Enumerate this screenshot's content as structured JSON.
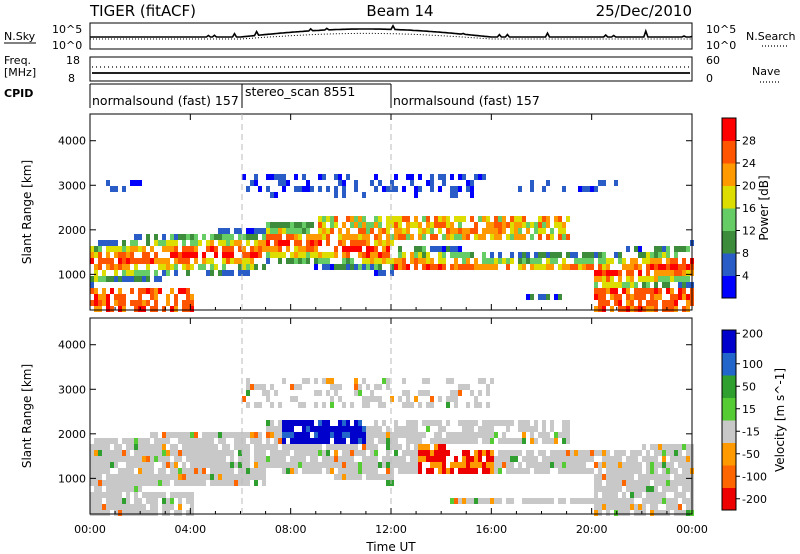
{
  "header": {
    "title_left": "TIGER (fitACF)",
    "title_center": "Beam 14",
    "title_right": "25/Dec/2010"
  },
  "top_panels": {
    "nsky_label": "N.Sky",
    "nsky_tick_top": "10^5",
    "nsky_tick_bottom": "10^0",
    "nsky_right_top": "10^5",
    "nsky_right_bottom": "10^0",
    "nsearch_label": "N.Search",
    "freq_label_1": "Freq.",
    "freq_label_2": "[MHz]",
    "freq_tick_top": "18",
    "freq_tick_bottom": "8",
    "nave_tick_top": "60",
    "nave_tick_bottom": "0",
    "nave_label": "Nave",
    "cpid_label": "CPID"
  },
  "cpid_segments": [
    {
      "label": "normalsound (fast) 157"
    },
    {
      "label": "stereo_scan 8551"
    },
    {
      "label": "normalsound (fast) 157"
    }
  ],
  "colors": {
    "power": [
      "#0000ff",
      "#2a5cc7",
      "#3c8c3c",
      "#66cc66",
      "#dddd00",
      "#ff9900",
      "#ff5500",
      "#ff0000"
    ],
    "velocity": [
      "#0000cc",
      "#2266cc",
      "#2f9f2f",
      "#55cc33",
      "#c8c8c8",
      "#ff9900",
      "#ff6600",
      "#ee0000"
    ]
  },
  "chart_data": [
    {
      "type": "heatmap",
      "ylabel": "Slant Range [km]",
      "ylim": [
        200,
        4600
      ],
      "xlim": [
        0,
        24
      ],
      "yticks": [
        "1000",
        "2000",
        "3000",
        "4000"
      ],
      "colorbar_label": "Power [dB]",
      "colorbar_ticks": [
        "4",
        "8",
        "12",
        "16",
        "20",
        "24",
        "28"
      ],
      "colorbar_levels": [
        0,
        4,
        8,
        12,
        16,
        20,
        24,
        28,
        32
      ]
    },
    {
      "type": "heatmap",
      "ylabel": "Slant Range [km]",
      "ylim": [
        200,
        4600
      ],
      "xlim": [
        0,
        24
      ],
      "yticks": [
        "1000",
        "2000",
        "3000",
        "4000"
      ],
      "xticks": [
        "00:00",
        "04:00",
        "08:00",
        "12:00",
        "16:00",
        "20:00",
        "00:00"
      ],
      "xlabel": "Time UT",
      "colorbar_label": "Velocity [m s^-1]",
      "colorbar_ticks": [
        "200",
        "100",
        "50",
        "15",
        "-15",
        "-50",
        "-100",
        "-200"
      ]
    }
  ]
}
